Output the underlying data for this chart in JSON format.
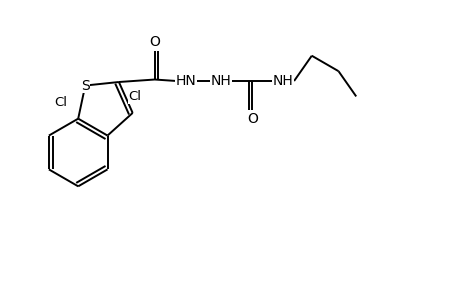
{
  "bg_color": "#ffffff",
  "line_color": "#000000",
  "lw": 1.4,
  "fs": 10,
  "figsize": [
    4.6,
    3.0
  ],
  "dpi": 100,
  "xlim": [
    0,
    9.2
  ],
  "ylim": [
    0,
    6.0
  ]
}
